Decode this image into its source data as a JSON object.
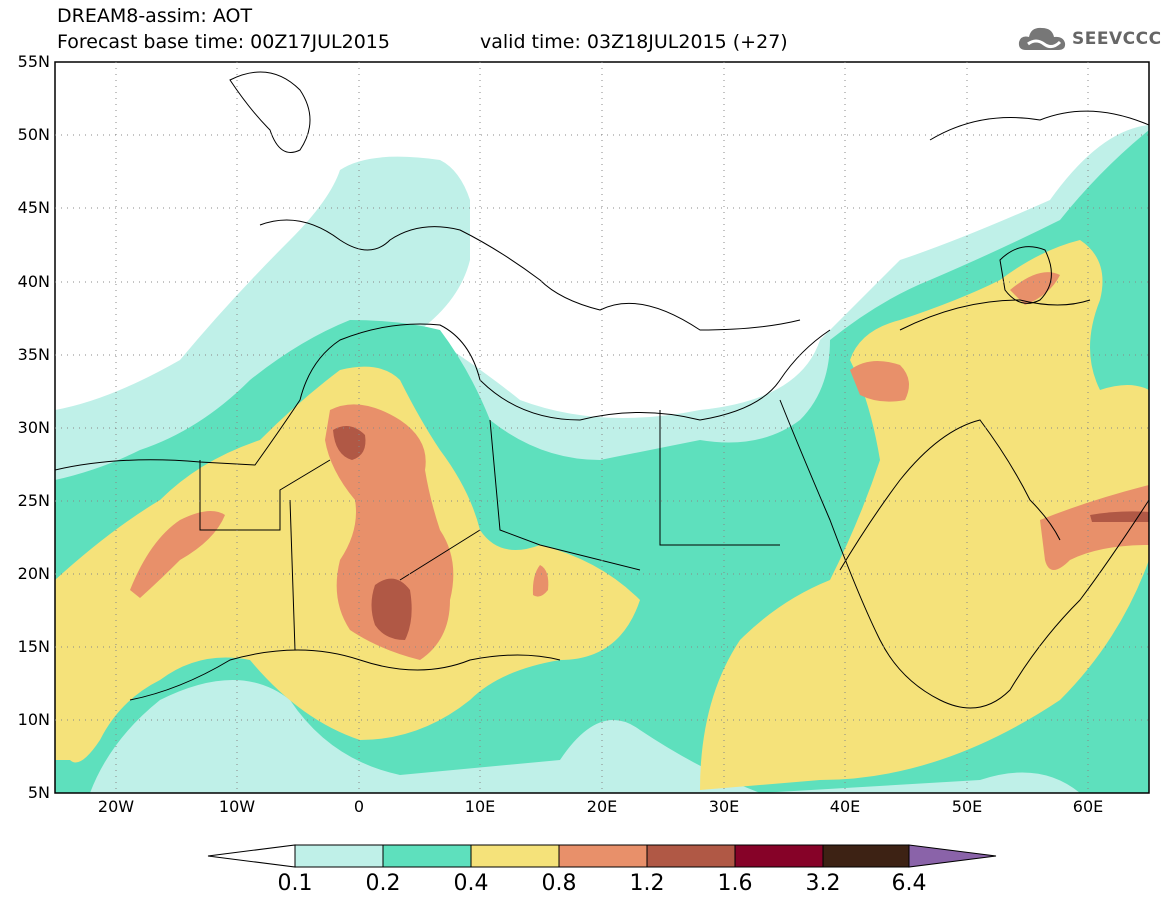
{
  "header": {
    "title": "DREAM8-assim: AOT",
    "base_time": "Forecast base time: 00Z17JUL2015",
    "valid_time": "valid time: 03Z18JUL2015 (+27)",
    "logo_text": "SEEVCCC"
  },
  "map": {
    "lat_ticks": [
      "55N",
      "50N",
      "45N",
      "40N",
      "35N",
      "30N",
      "25N",
      "20N",
      "15N",
      "10N",
      "5N"
    ],
    "lon_ticks": [
      "20W",
      "10W",
      "0",
      "10E",
      "20E",
      "30E",
      "40E",
      "50E",
      "60E"
    ],
    "extent": {
      "lon": [
        -25,
        65
      ],
      "lat": [
        5,
        55
      ]
    }
  },
  "colorbar": {
    "labels": [
      "0.1",
      "0.2",
      "0.4",
      "0.8",
      "1.2",
      "1.6",
      "3.2",
      "6.4"
    ],
    "colors": [
      "#bff0e8",
      "#5ee0bd",
      "#f5e27a",
      "#e8906a",
      "#b05845",
      "#860228",
      "#3d2214",
      "#8a63a9"
    ],
    "under_color": "#ffffff"
  }
}
